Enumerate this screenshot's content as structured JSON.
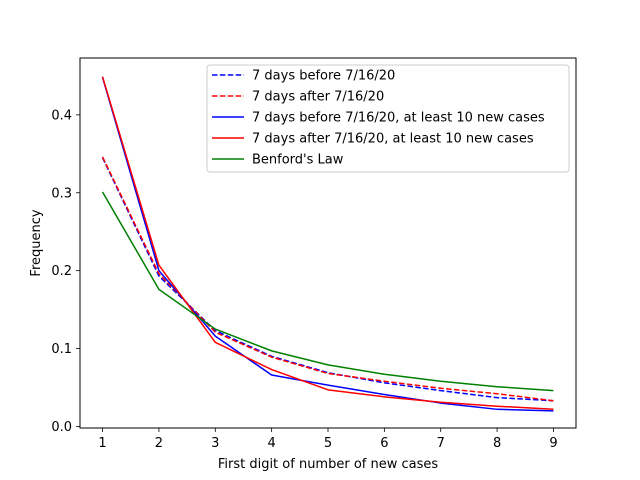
{
  "chart_data": {
    "type": "line",
    "xlabel": "First digit of number of new cases",
    "ylabel": "Frequency",
    "x": [
      1,
      2,
      3,
      4,
      5,
      6,
      7,
      8,
      9
    ],
    "xlim": [
      0.6,
      9.4
    ],
    "ylim": [
      -0.002,
      0.473
    ],
    "x_ticks": [
      "1",
      "2",
      "3",
      "4",
      "5",
      "6",
      "7",
      "8",
      "9"
    ],
    "y_ticks": [
      0.0,
      0.1,
      0.2,
      0.3,
      0.4
    ],
    "y_tick_labels": [
      "0.0",
      "0.1",
      "0.2",
      "0.3",
      "0.4"
    ],
    "grid": false,
    "legend_position": "top-right",
    "series": [
      {
        "name": "7 days before 7/16/20",
        "color": "#0000ff",
        "dash": "dashed",
        "values": [
          0.345,
          0.193,
          0.123,
          0.09,
          0.069,
          0.056,
          0.046,
          0.037,
          0.033
        ]
      },
      {
        "name": "7 days after 7/16/20",
        "color": "#ff0000",
        "dash": "dashed",
        "values": [
          0.346,
          0.196,
          0.121,
          0.089,
          0.068,
          0.058,
          0.049,
          0.042,
          0.033
        ]
      },
      {
        "name": "7 days before 7/16/20, at least 10 new cases",
        "color": "#0000ff",
        "dash": "solid",
        "values": [
          0.448,
          0.2,
          0.116,
          0.066,
          0.053,
          0.041,
          0.03,
          0.022,
          0.02
        ]
      },
      {
        "name": "7 days after 7/16/20, at least 10 new cases",
        "color": "#ff0000",
        "dash": "solid",
        "values": [
          0.449,
          0.207,
          0.108,
          0.073,
          0.047,
          0.038,
          0.031,
          0.026,
          0.022
        ]
      },
      {
        "name": "Benford's Law",
        "color": "#008000",
        "dash": "solid",
        "values": [
          0.301,
          0.176,
          0.125,
          0.097,
          0.079,
          0.067,
          0.058,
          0.051,
          0.046
        ]
      }
    ]
  }
}
